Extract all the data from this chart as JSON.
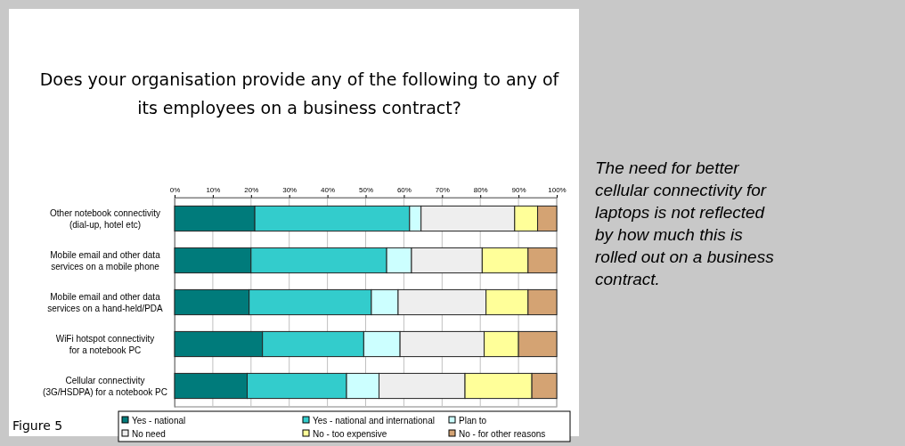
{
  "chart_data": {
    "type": "bar",
    "orientation": "horizontal",
    "stacked": true,
    "title": "Does your organisation provide any of the following to any of its employees on a business contract?",
    "categories": [
      "Other notebook connectivity (dial-up, hotel etc)",
      "Mobile email and other data services on a mobile phone",
      "Mobile email and other data services on a hand-held/PDA",
      "WiFi hotspot connectivity for a notebook PC",
      "Cellular connectivity (3G/HSDPA) for a notebook PC"
    ],
    "series": [
      {
        "name": "Yes - national",
        "color": "#007b7b",
        "values": [
          21,
          20,
          19.5,
          23,
          19
        ]
      },
      {
        "name": "Yes - national and international",
        "color": "#33cccc",
        "values": [
          40.5,
          35.5,
          32,
          26.5,
          26
        ]
      },
      {
        "name": "Plan to",
        "color": "#ccffff",
        "values": [
          3,
          6.5,
          7,
          9.5,
          8.5
        ]
      },
      {
        "name": "No need",
        "color": "#eeeeee",
        "values": [
          24.5,
          18.5,
          23,
          22,
          22.5
        ]
      },
      {
        "name": "No - too expensive",
        "color": "#ffff99",
        "values": [
          6,
          12,
          11,
          9,
          17.5
        ]
      },
      {
        "name": "No - for other reasons",
        "color": "#d4a373",
        "values": [
          5,
          7.5,
          7.5,
          10,
          6.5
        ]
      }
    ],
    "xlim": [
      0,
      100
    ],
    "xticks": [
      {
        "value": 0,
        "label": "0%"
      },
      {
        "value": 10,
        "label": "10%"
      },
      {
        "value": 20,
        "label": "20%"
      },
      {
        "value": 30,
        "label": "30%"
      },
      {
        "value": 40,
        "label": "40%"
      },
      {
        "value": 50,
        "label": "50%"
      },
      {
        "value": 60,
        "label": "60%"
      },
      {
        "value": 70,
        "label": "70%"
      },
      {
        "value": 80,
        "label": "80%"
      },
      {
        "value": 90,
        "label": "90%"
      },
      {
        "value": 100,
        "label": "100%"
      }
    ],
    "grid": "x",
    "legend": "bottom",
    "annotations": [
      "The need for better cellular connectivity for laptops is not reflected by how much this is rolled out on a business contract.",
      "Figure 5"
    ]
  }
}
